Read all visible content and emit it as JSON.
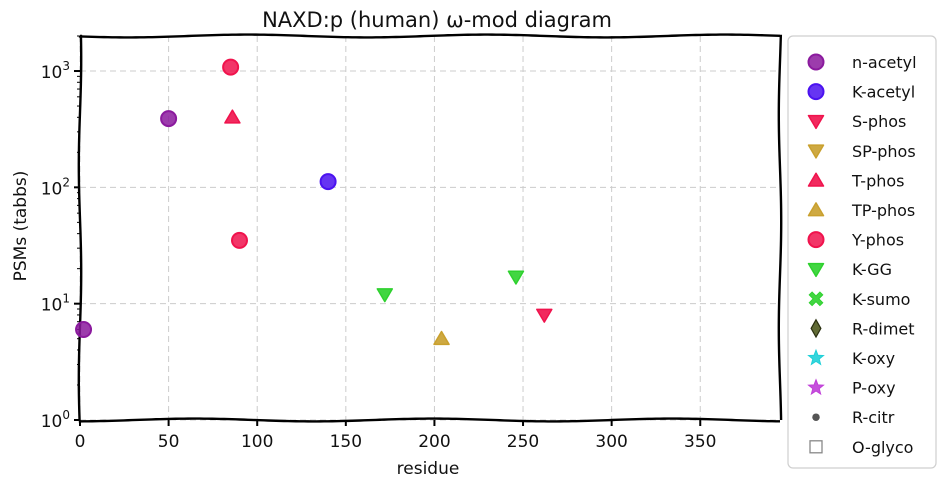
{
  "chart_data": {
    "type": "scatter",
    "title": "NAXD:p (human) ω-mod diagram",
    "xlabel": "residue",
    "ylabel": "PSMs (tabbs)",
    "xlim": [
      0,
      395
    ],
    "ylim": [
      1,
      2000
    ],
    "yscale": "log",
    "x_ticks": [
      0,
      50,
      100,
      150,
      200,
      250,
      300,
      350
    ],
    "y_ticks": [
      {
        "value": 1,
        "label": "10^0"
      },
      {
        "value": 10,
        "label": "10^1"
      },
      {
        "value": 100,
        "label": "10^2"
      },
      {
        "value": 1000,
        "label": "10^3"
      }
    ],
    "grid": true,
    "legend_position": "outside-right",
    "series": [
      {
        "name": "n-acetyl",
        "marker": "circle",
        "color": "#8b1a9e",
        "points": [
          {
            "x": 2,
            "y": 6
          },
          {
            "x": 50,
            "y": 390
          }
        ]
      },
      {
        "name": "K-acetyl",
        "marker": "circle",
        "color": "#4b12f0",
        "points": [
          {
            "x": 140,
            "y": 112
          }
        ]
      },
      {
        "name": "S-phos",
        "marker": "triangle-down",
        "color": "#f0134d",
        "points": [
          {
            "x": 262,
            "y": 8
          }
        ]
      },
      {
        "name": "SP-phos",
        "marker": "triangle-down",
        "color": "#c9a02e",
        "points": []
      },
      {
        "name": "T-phos",
        "marker": "triangle-up",
        "color": "#f0134d",
        "points": [
          {
            "x": 86,
            "y": 400
          }
        ]
      },
      {
        "name": "TP-phos",
        "marker": "triangle-up",
        "color": "#c9a02e",
        "points": [
          {
            "x": 204,
            "y": 5
          }
        ]
      },
      {
        "name": "Y-phos",
        "marker": "circle",
        "color": "#f0134d",
        "points": [
          {
            "x": 85,
            "y": 1080
          },
          {
            "x": 90,
            "y": 35
          }
        ]
      },
      {
        "name": "K-GG",
        "marker": "triangle-down",
        "color": "#2ed12e",
        "points": [
          {
            "x": 172,
            "y": 12
          },
          {
            "x": 246,
            "y": 17
          }
        ]
      },
      {
        "name": "K-sumo",
        "marker": "x",
        "color": "#2ed12e",
        "points": []
      },
      {
        "name": "R-dimet",
        "marker": "diamond",
        "color": "#4f5a1e",
        "points": []
      },
      {
        "name": "K-oxy",
        "marker": "star",
        "color": "#1fd0d8",
        "points": []
      },
      {
        "name": "P-oxy",
        "marker": "star",
        "color": "#c03ed8",
        "points": []
      },
      {
        "name": "R-citr",
        "marker": "dot",
        "color": "#555555",
        "points": []
      },
      {
        "name": "O-glyco",
        "marker": "square-open",
        "color": "#888888",
        "points": []
      }
    ]
  }
}
